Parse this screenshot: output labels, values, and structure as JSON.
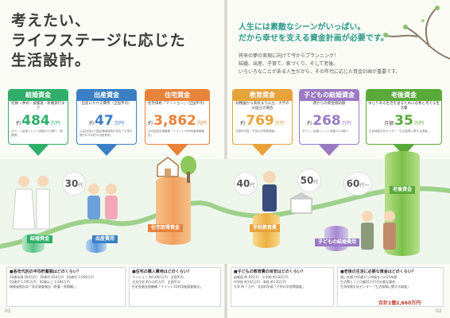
{
  "title_lines": [
    "考えたい、",
    "ライフステージに応じた",
    "生活設計。"
  ],
  "lead_lines": [
    "人生には素敵なシーンがいっぱい。",
    "だから幸せを支える資金計画が必要です。"
  ],
  "intro_lines": [
    "将来の夢の実現に向けて今からプランニング！",
    "結婚、出産、子育て、家づくり、そして老後。",
    "いろいろなことがある人生だから、その年代に応じた資金計画が重要です。"
  ],
  "cards": [
    {
      "header": "結婚資金",
      "sub": "結納・挙式・披露宴・新婚旅行まで",
      "prefix": "約",
      "number": "484",
      "unit": "万円",
      "note": "ゼクシィ結婚トレンド調査2015調べ（首都圏）",
      "color": "#2fae6a"
    },
    {
      "header": "出産資金",
      "sub": "出産にかかる費用（全国平均）",
      "prefix": "約",
      "number": "47",
      "unit": "万円",
      "note": "公益社団法人国民健康保険中央会「正常分娩分の平均的な出産費用」",
      "color": "#3a7fc4"
    },
    {
      "header": "住宅資金",
      "sub": "住宅価格「マンション」（全国平均）",
      "prefix": "約",
      "number": "3,862",
      "unit": "万円",
      "note": "住宅金融支援機構「フラット35利用者調査報告」",
      "color": "#e8833a"
    },
    {
      "header": "教育資金",
      "sub": "幼稚園から高校まで公立、大学のみ国立の場合",
      "prefix": "約",
      "number": "769",
      "unit": "万円",
      "note": "文部科学省「子供の学習費調査」",
      "color": "#e8a23a"
    },
    {
      "header": "子どもの結婚資金",
      "sub": "親からの資金援助額",
      "prefix": "約",
      "number": "268",
      "unit": "万円",
      "note": "ゼクシィ結婚トレンド調査2015調べ",
      "color": "#9a7ac4"
    },
    {
      "header": "老後資金",
      "sub": "ゆとりある生活を送るために必要と考える生活費",
      "prefix": "月額",
      "number": "35",
      "unit": "万円",
      "note": "生命保険文化センター「生活保障に関する調査」",
      "color": "#5aaa3a"
    }
  ],
  "ages": [
    {
      "n": "30",
      "d": "代"
    },
    {
      "n": "40",
      "d": "代"
    },
    {
      "n": "50",
      "d": "代"
    },
    {
      "n": "60",
      "d": "代〜"
    }
  ],
  "ribbons": [
    "結婚資金",
    "出産費用",
    "住宅取得資金",
    "学校教育費",
    "子どもの結婚費用",
    "老後資金"
  ],
  "bottom_boxes": [
    {
      "title": "■各年代別の平均貯蓄額はどのくらい？",
      "rows": [
        "30歳未満 284万円　30歳代 628万円　40歳代 1,049万円",
        "50歳代 1,595万円　60歳以上 2,384万円",
        "総務省統計局「家計調査報告（貯蓄・負債編）」"
      ]
    },
    {
      "title": "■住宅の購入費用はどのくらい？",
      "rows": [
        "マンション 約3,862万円　全国平均",
        "注文住宅 約3,245万円　全国平均",
        "住宅金融支援機構「フラット35利用者調査報告」"
      ]
    },
    {
      "title": "■子どもの教育費の目安はどのくらい？",
      "rows": [
        "幼稚園 約 69万円　小学校 約183万円",
        "中学校 約135万円　高校 約116万円",
        "大学 約 ? 万円　文部科学省「子供の学習費調査」"
      ]
    },
    {
      "title": "■老後の生活に必要な資金はどのくらい？",
      "rows": [
        "仮に夫婦で65歳から90歳までの25年間",
        "生活費として月額35万円が必要な場合",
        "生命保険文化センター「生活保障に関する調査」"
      ]
    }
  ],
  "total": "合計1億2,660万円",
  "page_left": "01",
  "page_right": "02"
}
